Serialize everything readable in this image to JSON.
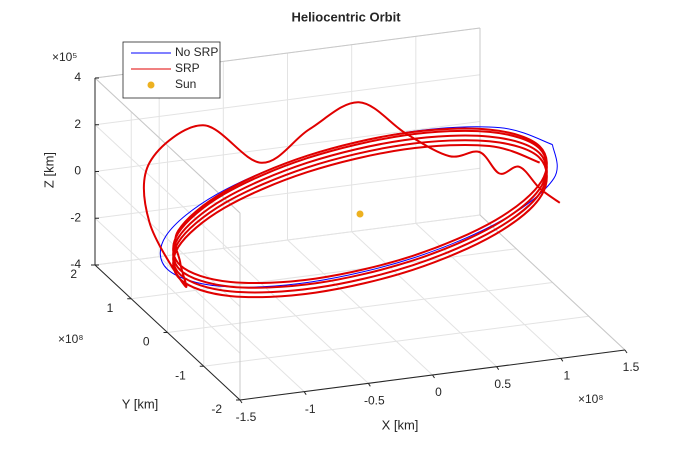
{
  "chart_data": {
    "type": "line3d",
    "title": "Heliocentric Orbit",
    "xlabel": "X [km]",
    "ylabel": "Y [km]",
    "zlabel": "Z [km]",
    "x_exponent": "×10⁸",
    "y_exponent": "×10⁸",
    "z_exponent": "×10⁵",
    "xlim": [
      -150000000.0,
      150000000.0
    ],
    "ylim": [
      -200000000.0,
      200000000.0
    ],
    "zlim": [
      -400000.0,
      400000.0
    ],
    "xticks": [
      {
        "value": -150000000.0,
        "label": "-1.5"
      },
      {
        "value": -100000000.0,
        "label": "-1"
      },
      {
        "value": -50000000.0,
        "label": "-0.5"
      },
      {
        "value": 0,
        "label": "0"
      },
      {
        "value": 50000000.0,
        "label": "0.5"
      },
      {
        "value": 100000000.0,
        "label": "1"
      },
      {
        "value": 150000000.0,
        "label": "1.5"
      }
    ],
    "yticks": [
      {
        "value": -200000000.0,
        "label": "-2"
      },
      {
        "value": -100000000.0,
        "label": "-1"
      },
      {
        "value": 0,
        "label": "0"
      },
      {
        "value": 100000000.0,
        "label": "1"
      },
      {
        "value": 200000000.0,
        "label": "2"
      }
    ],
    "zticks": [
      {
        "value": -400000.0,
        "label": "-4"
      },
      {
        "value": -200000.0,
        "label": "-2"
      },
      {
        "value": 0,
        "label": "0"
      },
      {
        "value": 200000.0,
        "label": "2"
      },
      {
        "value": 400000.0,
        "label": "4"
      }
    ],
    "grid": true,
    "legend": "upper left",
    "series": [
      {
        "name": "No SRP",
        "color": "#0000ff",
        "marker": "line",
        "x": [
          150000000.0,
          129900000.0,
          75000000.0,
          0,
          -75000000.0,
          -129900000.0,
          -150000000.0,
          -129900000.0,
          -75000000.0,
          0,
          75000000.0,
          129900000.0,
          150000000.0
        ],
        "y": [
          0,
          75000000.0,
          129900000.0,
          150000000.0,
          129900000.0,
          75000000.0,
          0,
          -75000000.0,
          -129900000.0,
          -150000000.0,
          -129900000.0,
          -75000000.0,
          0
        ],
        "z": [
          190000.0,
          168600.0,
          110000.0,
          30000.0,
          -50000.0,
          -108600.0,
          -130000.0,
          -108600.0,
          -50000.0,
          30000.0,
          110000.0,
          168600.0,
          190000.0
        ]
      },
      {
        "name": "SRP",
        "color": "#e00000",
        "marker": "line",
        "x": [
          140000000.0,
          121200000.0,
          70000000.0,
          0,
          -70000000.0,
          -121200000.0,
          -140000000.0,
          -121200000.0,
          -70000000.0,
          0,
          70000000.0,
          121200000.0,
          140000000.0,
          121200000.0,
          70000000.0,
          0,
          -70000000.0,
          -121200000.0,
          -140000000.0,
          -121200000.0,
          -70000000.0,
          0,
          70000000.0,
          121200000.0,
          140000000.0,
          121200000.0,
          70000000.0,
          0,
          -70000000.0,
          -121200000.0,
          -140000000.0,
          -121200000.0,
          -70000000.0,
          0,
          70000000.0,
          121200000.0,
          140000000.0,
          121200000.0,
          70000000.0,
          0,
          -70000000.0,
          -121200000.0,
          -140000000.0,
          -121200000.0,
          -70000000.0,
          0,
          70000000.0,
          121200000.0,
          140000000.0,
          121200000.0,
          70000000.0,
          0,
          -70000000.0,
          -121200000.0,
          -140000000.0,
          -145000000.0,
          -150000000.0,
          -130000000.0,
          -80000000.0,
          -40000000.0,
          0,
          40000000.0,
          70000000.0,
          95000000.0,
          110000000.0,
          120000000.0,
          130000000.0,
          140000000.0,
          150000000.0
        ],
        "y": [
          0,
          72500000.0,
          125600000.0,
          145000000.0,
          125600000.0,
          72500000.0,
          0,
          -72500000.0,
          -125600000.0,
          -145000000.0,
          -125600000.0,
          -72500000.0,
          0,
          72500000.0,
          125600000.0,
          145000000.0,
          125600000.0,
          72500000.0,
          0,
          -72500000.0,
          -125600000.0,
          -145000000.0,
          -125600000.0,
          -72500000.0,
          0,
          72500000.0,
          125600000.0,
          145000000.0,
          125600000.0,
          72500000.0,
          0,
          -72500000.0,
          -125600000.0,
          -145000000.0,
          -125600000.0,
          -72500000.0,
          0,
          72500000.0,
          125600000.0,
          145000000.0,
          125600000.0,
          72500000.0,
          0,
          -72500000.0,
          -125600000.0,
          -145000000.0,
          -125600000.0,
          -72500000.0,
          0,
          72500000.0,
          125600000.0,
          145000000.0,
          125600000.0,
          72500000.0,
          0,
          -30000000.0,
          50000000.0,
          120000000.0,
          150000000.0,
          130000000.0,
          140000000.0,
          145000000.0,
          120000000.0,
          90000000.0,
          60000000.0,
          40000000.0,
          20000000.0,
          0,
          -20000000.0
        ],
        "z": [
          120000.0,
          100000.0,
          45000.0,
          -30000.0,
          -105000.0,
          -160000.0,
          -180000.0,
          -160000.0,
          -105000.0,
          -30000.0,
          45000.0,
          100000.0,
          140000.0,
          120000.0,
          65000.0,
          -10000.0,
          -85000.0,
          -140000.0,
          -160000.0,
          -140000.0,
          -85000.0,
          -10000.0,
          65000.0,
          120000.0,
          160000.0,
          140000.0,
          85000.0,
          10000.0,
          -65000.0,
          -120000.0,
          -140000.0,
          -120000.0,
          -65000.0,
          10000.0,
          85000.0,
          140000.0,
          180000.0,
          160000.0,
          105000.0,
          30000.0,
          -45000.0,
          -100000.0,
          -120000.0,
          -100000.0,
          -45000.0,
          30000.0,
          105000.0,
          160000.0,
          190000.0,
          170000.0,
          115000.0,
          40000.0,
          -35000.0,
          -90000.0,
          -110000.0,
          -160000.0,
          0,
          140000.0,
          220000.0,
          60000.0,
          160000.0,
          240000.0,
          120000.0,
          50000.0,
          100000.0,
          30000.0,
          80000.0,
          10000.0,
          -30000.0
        ]
      },
      {
        "name": "Sun",
        "color": "#edb120",
        "marker": "dot",
        "x": [
          0
        ],
        "y": [
          0
        ],
        "z": [
          0
        ]
      }
    ]
  }
}
